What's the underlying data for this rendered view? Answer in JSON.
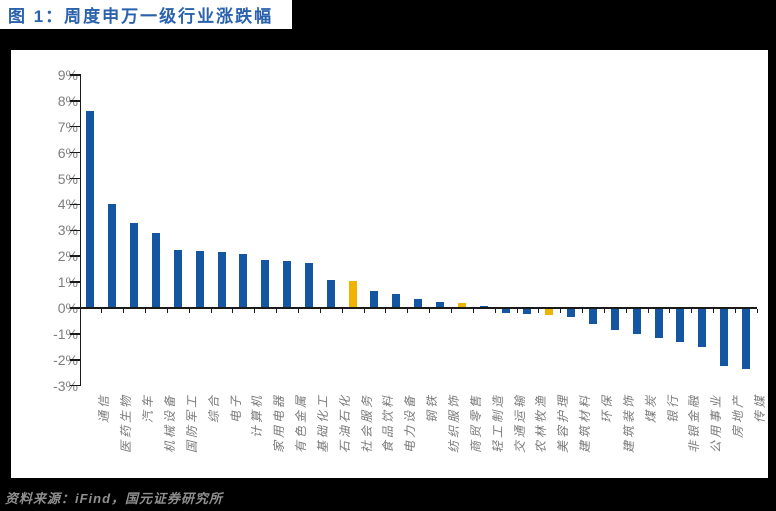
{
  "title": "图 1：周度申万一级行业涨跌幅",
  "footer": {
    "source_text": "资料来源：iFind，国元证券研究所"
  },
  "colors": {
    "page_background": "#000000",
    "panel_background": "#FFFFFF",
    "title_blue": "#2A61AD",
    "bar_blue": "#1556A3",
    "bar_yellow": "#F0B301",
    "axis_label_gray": "#7E7E7E",
    "footer_gray": "#8F8F8F",
    "axis_line": "#1a1a1a"
  },
  "chart_data": {
    "type": "bar",
    "title": "周度申万一级行业涨跌幅",
    "xlabel": "",
    "ylabel": "",
    "ylim": [
      -3,
      9
    ],
    "ytick_step": 1,
    "ytick_labels": [
      "9%",
      "8%",
      "7%",
      "6%",
      "5%",
      "4%",
      "3%",
      "2%",
      "1%",
      "0%",
      "-1%",
      "-2%",
      "-3%"
    ],
    "grid": false,
    "legend": "none",
    "categories": [
      "通信",
      "医药生物",
      "汽车",
      "机械设备",
      "国防军工",
      "综合",
      "电子",
      "计算机",
      "家用电器",
      "有色金属",
      "基础化工",
      "石油石化",
      "社会服务",
      "食品饮料",
      "电力设备",
      "钢铁",
      "纺织服饰",
      "商贸零售",
      "轻工制造",
      "交通运输",
      "农林牧渔",
      "美容护理",
      "建筑材料",
      "环保",
      "建筑装饰",
      "煤炭",
      "银行",
      "非银金融",
      "公用事业",
      "房地产",
      "传媒"
    ],
    "values": [
      7.6,
      4.0,
      3.3,
      2.9,
      2.25,
      2.2,
      2.15,
      2.1,
      1.85,
      1.8,
      1.75,
      1.1,
      1.05,
      0.65,
      0.55,
      0.35,
      0.22,
      0.2,
      0.08,
      -0.2,
      -0.22,
      -0.27,
      -0.35,
      -0.6,
      -0.85,
      -1.0,
      -1.15,
      -1.3,
      -1.5,
      -2.25,
      -2.35
    ],
    "highlight_indices": [
      12,
      17,
      21
    ],
    "bar_colors": {
      "default": "#1556A3",
      "highlight": "#F0B301"
    }
  }
}
